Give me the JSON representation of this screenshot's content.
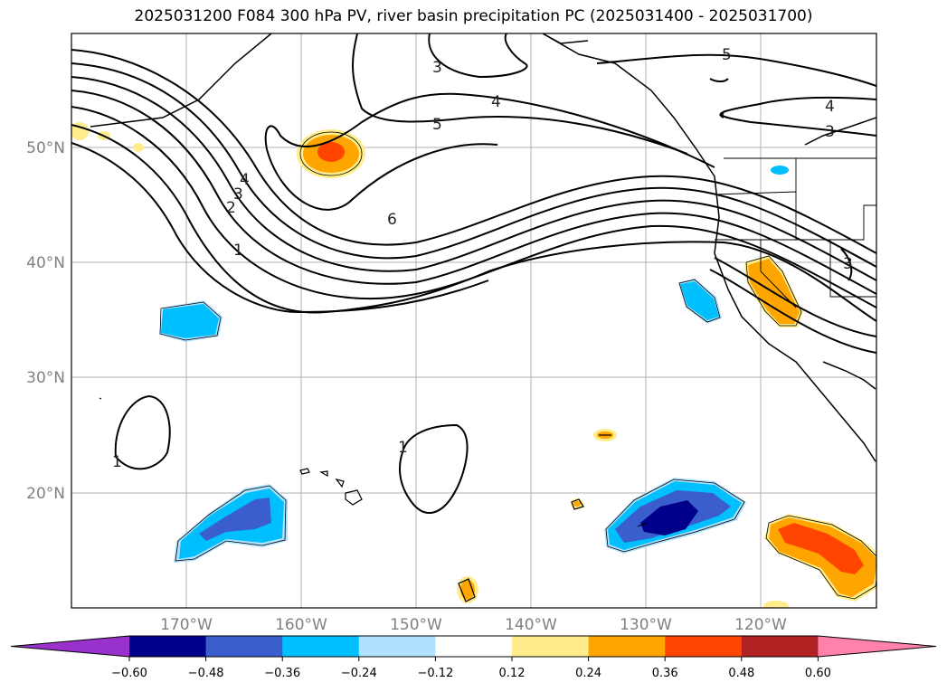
{
  "title": "2025031200 F084 300 hPa PV, river basin precipitation PC (2025031400 - 2025031700)",
  "map": {
    "lon_range": [
      -180,
      -110
    ],
    "lat_range": [
      10,
      60
    ],
    "lat_labels": [
      "50°N",
      "40°N",
      "30°N",
      "20°N"
    ],
    "lon_labels": [
      "170°W",
      "160°W",
      "150°W",
      "140°W",
      "130°W",
      "120°W"
    ],
    "pv_contour_labels": [
      "3",
      "4",
      "5",
      "6",
      "5",
      "4",
      "3",
      "4",
      "3",
      "2",
      "1",
      "1",
      "1",
      "3"
    ]
  },
  "colorbar": {
    "ticks": [
      "−0.60",
      "−0.48",
      "−0.36",
      "−0.24",
      "−0.12",
      "0.12",
      "0.24",
      "0.36",
      "0.48",
      "0.60"
    ],
    "colors": [
      "#9932cc",
      "#00008b",
      "#3a5fcd",
      "#00bfff",
      "#b0e2ff",
      "#ffffff",
      "#ffec8b",
      "#ffa500",
      "#ff4500",
      "#b22222",
      "#ff82ab"
    ]
  }
}
